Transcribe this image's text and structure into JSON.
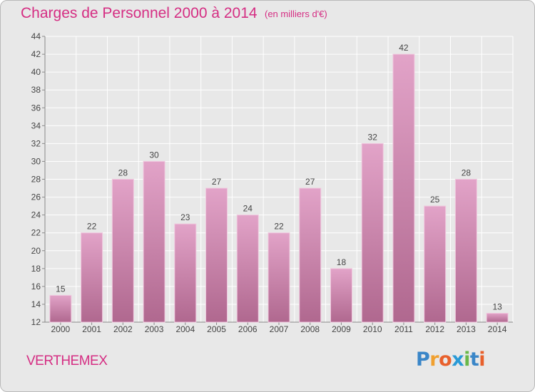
{
  "chart_data": {
    "type": "bar",
    "title": "Charges de Personnel 2000 à 2014",
    "unit_note": "(en milliers d'€)",
    "categories": [
      "2000",
      "2001",
      "2002",
      "2003",
      "2004",
      "2005",
      "2006",
      "2007",
      "2008",
      "2009",
      "2010",
      "2011",
      "2012",
      "2013",
      "2014"
    ],
    "values": [
      15,
      22,
      28,
      30,
      23,
      27,
      24,
      22,
      27,
      18,
      32,
      42,
      25,
      28,
      13
    ],
    "ylim": [
      12,
      44
    ],
    "yticks": [
      12,
      14,
      16,
      18,
      20,
      22,
      24,
      26,
      28,
      30,
      32,
      34,
      36,
      38,
      40,
      42,
      44
    ],
    "grid": true,
    "bar_color_top": "#e2a3c8",
    "bar_color_bottom": "#b0688f",
    "xlabel": "",
    "ylabel": ""
  },
  "commune": "VERTHEMEX",
  "logo": {
    "letters": [
      "P",
      "r",
      "o",
      "x",
      "i",
      "t",
      "i"
    ],
    "colors": [
      "#3a86c8",
      "#f0a030",
      "#e8602c",
      "#2a9ad6",
      "#6ab84a",
      "#3a86c8",
      "#e8602c"
    ]
  },
  "colors": {
    "accent": "#d52e83",
    "background": "#e8e8e8"
  }
}
